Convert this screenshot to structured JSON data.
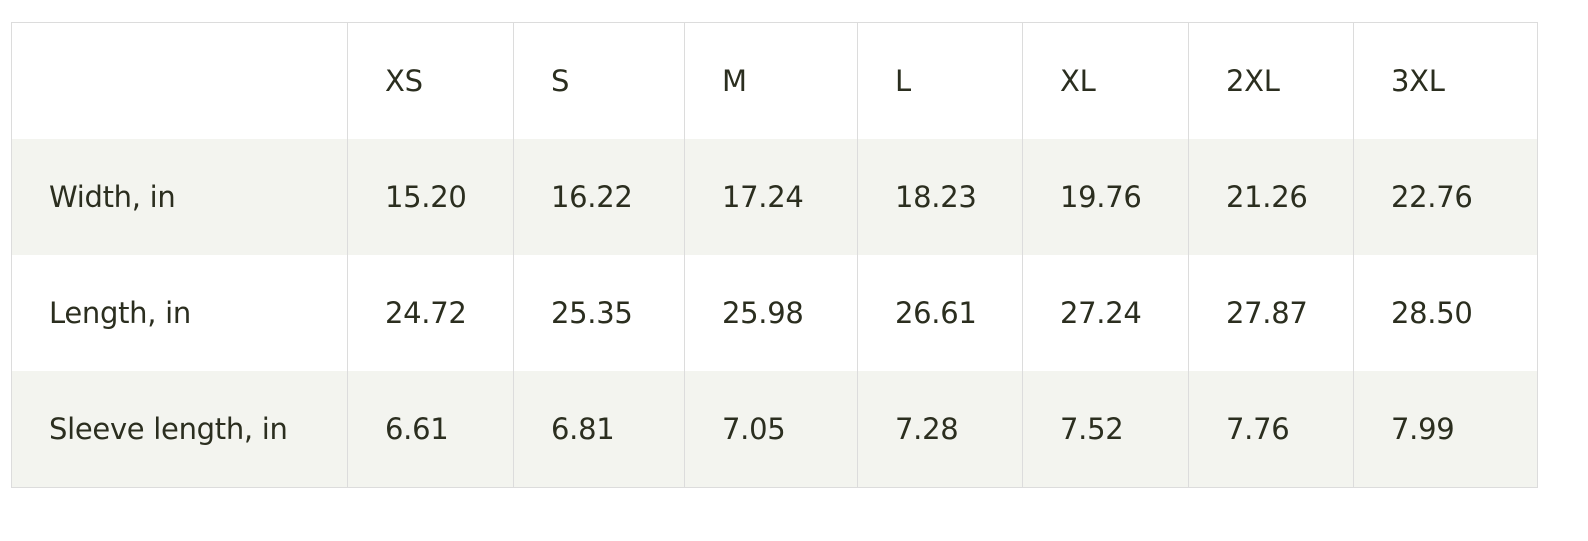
{
  "size_table": {
    "corner_label": "",
    "sizes": [
      "XS",
      "S",
      "M",
      "L",
      "XL",
      "2XL",
      "3XL"
    ],
    "rows": [
      {
        "label": "Width, in",
        "values": [
          "15.20",
          "16.22",
          "17.24",
          "18.23",
          "19.76",
          "21.26",
          "22.76"
        ]
      },
      {
        "label": "Length, in",
        "values": [
          "24.72",
          "25.35",
          "25.98",
          "26.61",
          "27.24",
          "27.87",
          "28.50"
        ]
      },
      {
        "label": "Sleeve length, in",
        "values": [
          "6.61",
          "6.81",
          "7.05",
          "7.28",
          "7.52",
          "7.76",
          "7.99"
        ]
      }
    ]
  },
  "colors": {
    "text": "#2b2e1f",
    "stripe": "#f3f4ef",
    "border": "#dcdcdc"
  }
}
